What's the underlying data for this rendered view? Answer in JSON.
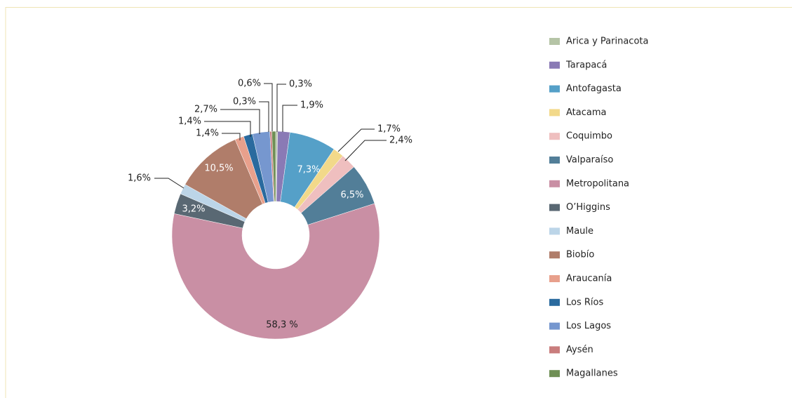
{
  "chart_data": {
    "type": "donut",
    "categories": [
      "Arica y Parinacota",
      "Tarapacá",
      "Antofagasta",
      "Atacama",
      "Coquimbo",
      "Valparaíso",
      "Metropolitana",
      "O’Higgins",
      "Maule",
      "Biobío",
      "Araucanía",
      "Los Ríos",
      "Los Lagos",
      "Aysén",
      "Magallanes"
    ],
    "values": [
      0.3,
      1.9,
      7.3,
      1.7,
      2.4,
      6.5,
      58.3,
      3.2,
      1.6,
      10.5,
      1.4,
      1.4,
      2.7,
      0.3,
      0.6
    ],
    "value_labels": [
      "0,3%",
      "1,9%",
      "7,3%",
      "1,7%",
      "2,4%",
      "6,5%",
      "58,3 %",
      "3,2%",
      "1,6%",
      "10,5%",
      "1,4%",
      "1,4%",
      "2,7%",
      "0,3%",
      "0,6%"
    ],
    "colors": [
      "#b5c4a6",
      "#8a7ab5",
      "#55a0c8",
      "#f2d98a",
      "#efbfbf",
      "#527e98",
      "#c98fa4",
      "#596873",
      "#bcd5e8",
      "#b07d6a",
      "#e8a08c",
      "#2a6a9e",
      "#7697cf",
      "#c97d7d",
      "#6f8f55"
    ],
    "legend": "right"
  }
}
